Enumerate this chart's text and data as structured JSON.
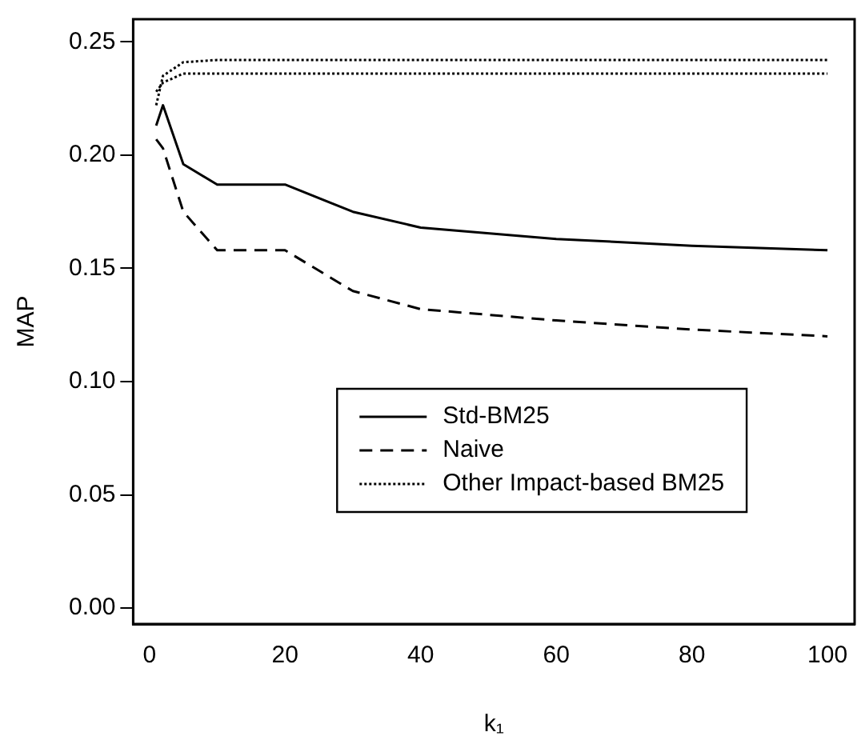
{
  "chart_data": {
    "type": "line",
    "xlabel": "k₁",
    "ylabel": "MAP",
    "x": [
      1,
      2,
      5,
      10,
      20,
      30,
      40,
      60,
      80,
      100
    ],
    "series": [
      {
        "name": "Std-BM25",
        "color": "#000000",
        "line_style": "solid",
        "values": [
          0.213,
          0.222,
          0.196,
          0.187,
          0.187,
          0.175,
          0.168,
          0.163,
          0.16,
          0.158
        ]
      },
      {
        "name": "Naive",
        "color": "#000000",
        "line_style": "dashed",
        "values": [
          0.207,
          0.203,
          0.175,
          0.158,
          0.158,
          0.14,
          0.132,
          0.127,
          0.123,
          0.12
        ]
      },
      {
        "name": "Other Impact-based BM25",
        "color": "#000000",
        "line_style": "dotted",
        "values": [
          0.222,
          0.235,
          0.241,
          0.242,
          0.242,
          0.242,
          0.242,
          0.242,
          0.242,
          0.242
        ]
      },
      {
        "color": "#000000",
        "line_style": "dotted",
        "values": [
          0.228,
          0.232,
          0.236,
          0.236,
          0.236,
          0.236,
          0.236,
          0.236,
          0.236,
          0.236
        ]
      }
    ],
    "xlim": [
      -2.4,
      104
    ],
    "xticks": [
      0,
      20,
      40,
      60,
      80,
      100
    ],
    "ylim": [
      -0.007,
      0.26
    ],
    "yticks": [
      {
        "value": 0,
        "label": "0.00"
      },
      0.05,
      {
        "value": 0.1,
        "label": "0.10"
      },
      0.15,
      {
        "value": 0.2,
        "label": "0.20"
      },
      0.25
    ],
    "grid": false,
    "legend": "bottom",
    "marker": "none"
  }
}
